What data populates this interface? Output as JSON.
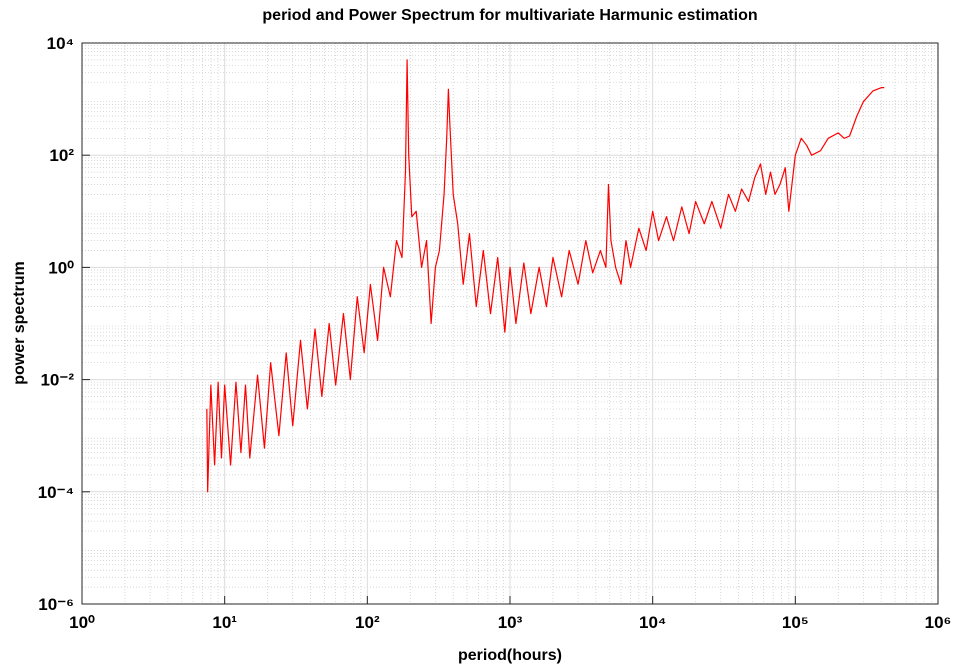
{
  "chart_data": {
    "type": "line",
    "title": "period and Power Spectrum for multivariate Harmunic estimation",
    "x_label": "period(hours)",
    "y_label": "power spectrum",
    "x_scale": "log",
    "y_scale": "log",
    "grid": true,
    "minor_grid": true,
    "xlim": [
      1,
      1000000
    ],
    "ylim": [
      1e-06,
      10000
    ],
    "xticks": [
      {
        "value": 1,
        "label": "10⁰"
      },
      {
        "value": 10,
        "label": "10¹"
      },
      {
        "value": 100,
        "label": "10²"
      },
      {
        "value": 1000,
        "label": "10³"
      },
      {
        "value": 10000,
        "label": "10⁴"
      },
      {
        "value": 100000,
        "label": "10⁵"
      },
      {
        "value": 1000000,
        "label": "10⁶"
      }
    ],
    "yticks": [
      {
        "value": 1e-06,
        "label": "10⁻⁶"
      },
      {
        "value": 0.0001,
        "label": "10⁻⁴"
      },
      {
        "value": 0.01,
        "label": "10⁻²"
      },
      {
        "value": 1,
        "label": "10⁰"
      },
      {
        "value": 100,
        "label": "10²"
      },
      {
        "value": 10000,
        "label": "10⁴"
      }
    ],
    "x": [
      7.5,
      7.6,
      8,
      8.5,
      9,
      9.5,
      10,
      11,
      12,
      13,
      14,
      15,
      17,
      19,
      21,
      24,
      27,
      30,
      34,
      38,
      43,
      48,
      54,
      60,
      68,
      76,
      85,
      95,
      105,
      118,
      130,
      145,
      160,
      175,
      185,
      190,
      195,
      205,
      220,
      240,
      260,
      280,
      300,
      320,
      345,
      360,
      370,
      380,
      400,
      430,
      470,
      520,
      580,
      650,
      730,
      820,
      920,
      1000,
      1100,
      1250,
      1400,
      1600,
      1800,
      2000,
      2300,
      2600,
      3000,
      3400,
      3800,
      4300,
      4700,
      4900,
      5100,
      5500,
      6000,
      6500,
      7000,
      8000,
      9000,
      10000,
      11000,
      12500,
      14000,
      16000,
      18000,
      20000,
      23000,
      26000,
      30000,
      34000,
      38000,
      42000,
      47000,
      52000,
      57000,
      62000,
      67000,
      72000,
      78000,
      85000,
      90000,
      100000,
      110000,
      120000,
      130000,
      150000,
      170000,
      200000,
      220000,
      240000,
      270000,
      300000,
      350000,
      400000,
      420000
    ],
    "series": [
      {
        "color": "#ff0000",
        "values": [
          0.003,
          0.0001,
          0.008,
          0.0003,
          0.009,
          0.0004,
          0.008,
          0.0003,
          0.009,
          0.0005,
          0.008,
          0.0004,
          0.012,
          0.0006,
          0.02,
          0.001,
          0.03,
          0.0015,
          0.05,
          0.003,
          0.08,
          0.005,
          0.1,
          0.008,
          0.15,
          0.01,
          0.3,
          0.03,
          0.5,
          0.05,
          1,
          0.3,
          3,
          1.5,
          50,
          5000,
          100,
          8,
          10,
          1,
          3,
          0.1,
          1,
          2,
          20,
          200,
          1500,
          300,
          20,
          6,
          0.5,
          4,
          0.2,
          2,
          0.15,
          1.5,
          0.07,
          1,
          0.1,
          1.2,
          0.15,
          1,
          0.2,
          1.5,
          0.3,
          2,
          0.5,
          3,
          0.8,
          2,
          1,
          30,
          3,
          1,
          0.5,
          3,
          1,
          5,
          2,
          10,
          3,
          8,
          3,
          12,
          4,
          15,
          6,
          15,
          5,
          20,
          10,
          25,
          15,
          40,
          70,
          20,
          50,
          20,
          30,
          60,
          10,
          100,
          200,
          150,
          100,
          120,
          200,
          250,
          200,
          220,
          500,
          900,
          1400,
          1600,
          1600
        ]
      }
    ]
  }
}
